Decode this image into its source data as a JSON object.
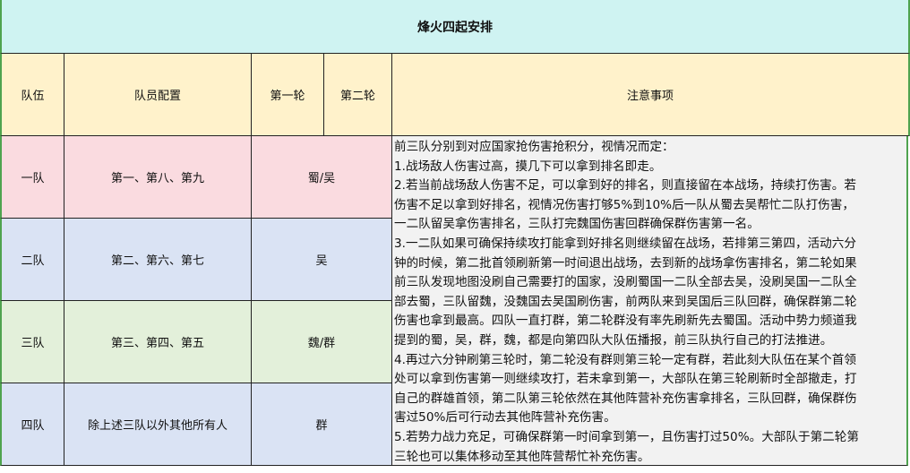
{
  "title": "烽火四起安排",
  "headers": {
    "team": "队伍",
    "members": "队员配置",
    "round1": "第一轮",
    "round2": "第二轮",
    "notes": "注意事项"
  },
  "rows": [
    {
      "team": "一队",
      "members": "第一、第八、第九",
      "target": "蜀/吴",
      "color": "#fadbe0"
    },
    {
      "team": "二队",
      "members": "第二、第六、第七",
      "target": "吴",
      "color": "#dae3f4"
    },
    {
      "team": "三队",
      "members": "第三、第四、第五",
      "target": "魏/群",
      "color": "#e3f0da"
    },
    {
      "team": "四队",
      "members": "除上述三队以外其他所有人",
      "target": "群",
      "color": "#dae3f4"
    }
  ],
  "notes_lines": [
    "前三队分别到对应国家抢伤害抢积分，视情况而定：",
    "1.战场敌人伤害过高，摸几下可以拿到排名即走。",
    "2.若当前战场敌人伤害不足，可以拿到好的排名，则直接留在本战场，持续打伤害。若",
    "伤害不足以拿到好排名，视情况伤害打够5%到10%后一队从蜀去吴帮忙二队打伤害，",
    "一二队留吴拿伤害排名，三队打完魏国伤害回群确保群伤害第一名。",
    "3.一二队如果可确保持续攻打能拿到好排名则继续留在战场，若排第三第四，活动六分",
    "钟的时候，第二批首领刷新第一时间退出战场，去到新的战场拿伤害排名，第二轮如果",
    "前三队发现地图没刷自己需要打的国家，没刷蜀国一二队全部去吴，没刷吴国一二队全",
    "部去蜀，三队留魏，没魏国去吴国刷伤害，前两队来到吴国后三队回群，确保群第二轮",
    "伤害也拿到最高。四队一直打群，第二轮群没有率先刷新先去蜀国。活动中势力频道我",
    "提到的蜀，吴，群，魏，都是向第四队大队伍播报，前三队执行自己的打法推进。",
    "4.再过六分钟刷第三轮时，第二轮没有群则第三轮一定有群，若此刻大队伍在某个首领",
    "处可以拿到伤害第一则继续攻打，若未拿到第一，大部队在第三轮刷新时全部撤走，打",
    "自己的群雄首领，第二队第三轮依然在其他阵营补充伤害拿排名，三队回群，确保群伤",
    "害过50%后可行动去其他阵营补充伤害。",
    "5.若势力战力充足，可确保群第一时间拿到第一，且伤害打过50%。大部队于第二轮第",
    "三轮也可以集体移动至其他阵营帮忙补充伤害。"
  ]
}
